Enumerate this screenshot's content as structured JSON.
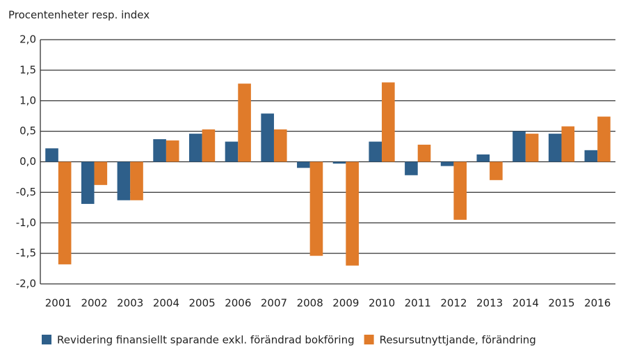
{
  "chart_data": {
    "type": "bar",
    "y_label": "Procentenheter resp. index",
    "categories": [
      "2001",
      "2002",
      "2003",
      "2004",
      "2005",
      "2006",
      "2007",
      "2008",
      "2009",
      "2010",
      "2011",
      "2012",
      "2013",
      "2014",
      "2015",
      "2016"
    ],
    "series": [
      {
        "name": "Revidering finansiellt sparande exkl. förändrad bokföring",
        "color": "#2e5f8a",
        "values": [
          0.22,
          -0.69,
          -0.63,
          0.37,
          0.46,
          0.33,
          0.79,
          -0.1,
          -0.03,
          0.33,
          -0.22,
          -0.07,
          0.12,
          0.5,
          0.46,
          0.19
        ]
      },
      {
        "name": "Resursutnyttjande, förändring",
        "color": "#e07b2a",
        "values": [
          -1.68,
          -0.38,
          -0.63,
          0.35,
          0.53,
          1.28,
          0.53,
          -1.54,
          -1.7,
          1.3,
          0.28,
          -0.95,
          -0.3,
          0.46,
          0.58,
          0.74
        ]
      }
    ],
    "ylim": [
      -2,
      2
    ],
    "yticks": [
      {
        "value": -2,
        "label": "-2,0"
      },
      {
        "value": -1.5,
        "label": "-1,5"
      },
      {
        "value": -1,
        "label": "-1,0"
      },
      {
        "value": -0.5,
        "label": "-0,5"
      },
      {
        "value": 0,
        "label": "0,0"
      },
      {
        "value": 0.5,
        "label": "0,5"
      },
      {
        "value": 1,
        "label": "1,0"
      },
      {
        "value": 1.5,
        "label": "1,5"
      },
      {
        "value": 2,
        "label": "2,0"
      }
    ],
    "grid": true,
    "legend": "bottom"
  }
}
